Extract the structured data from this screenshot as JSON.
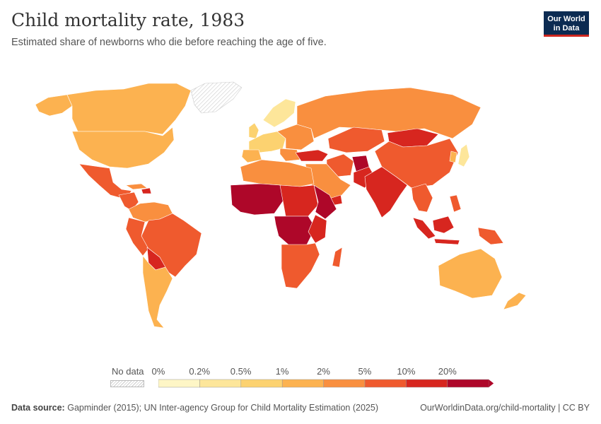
{
  "title": "Child mortality rate, 1983",
  "subtitle": "Estimated share of newborns who die before reaching the age of five.",
  "logo": {
    "line1": "Our World",
    "line2": "in Data"
  },
  "legend": {
    "no_data_label": "No data",
    "ticks": [
      "0%",
      "0.2%",
      "0.5%",
      "1%",
      "2%",
      "5%",
      "10%",
      "20%"
    ],
    "colors": [
      "#fef6c6",
      "#fde69a",
      "#fcd270",
      "#fcb250",
      "#f98f3f",
      "#ef5a2e",
      "#d7261f",
      "#ae0729"
    ]
  },
  "footer": {
    "source_label": "Data source:",
    "source_text": "Gapminder (2015); UN Inter-agency Group for Child Mortality Estimation (2025)",
    "url": "OurWorldinData.org/child-mortality | CC BY"
  }
}
